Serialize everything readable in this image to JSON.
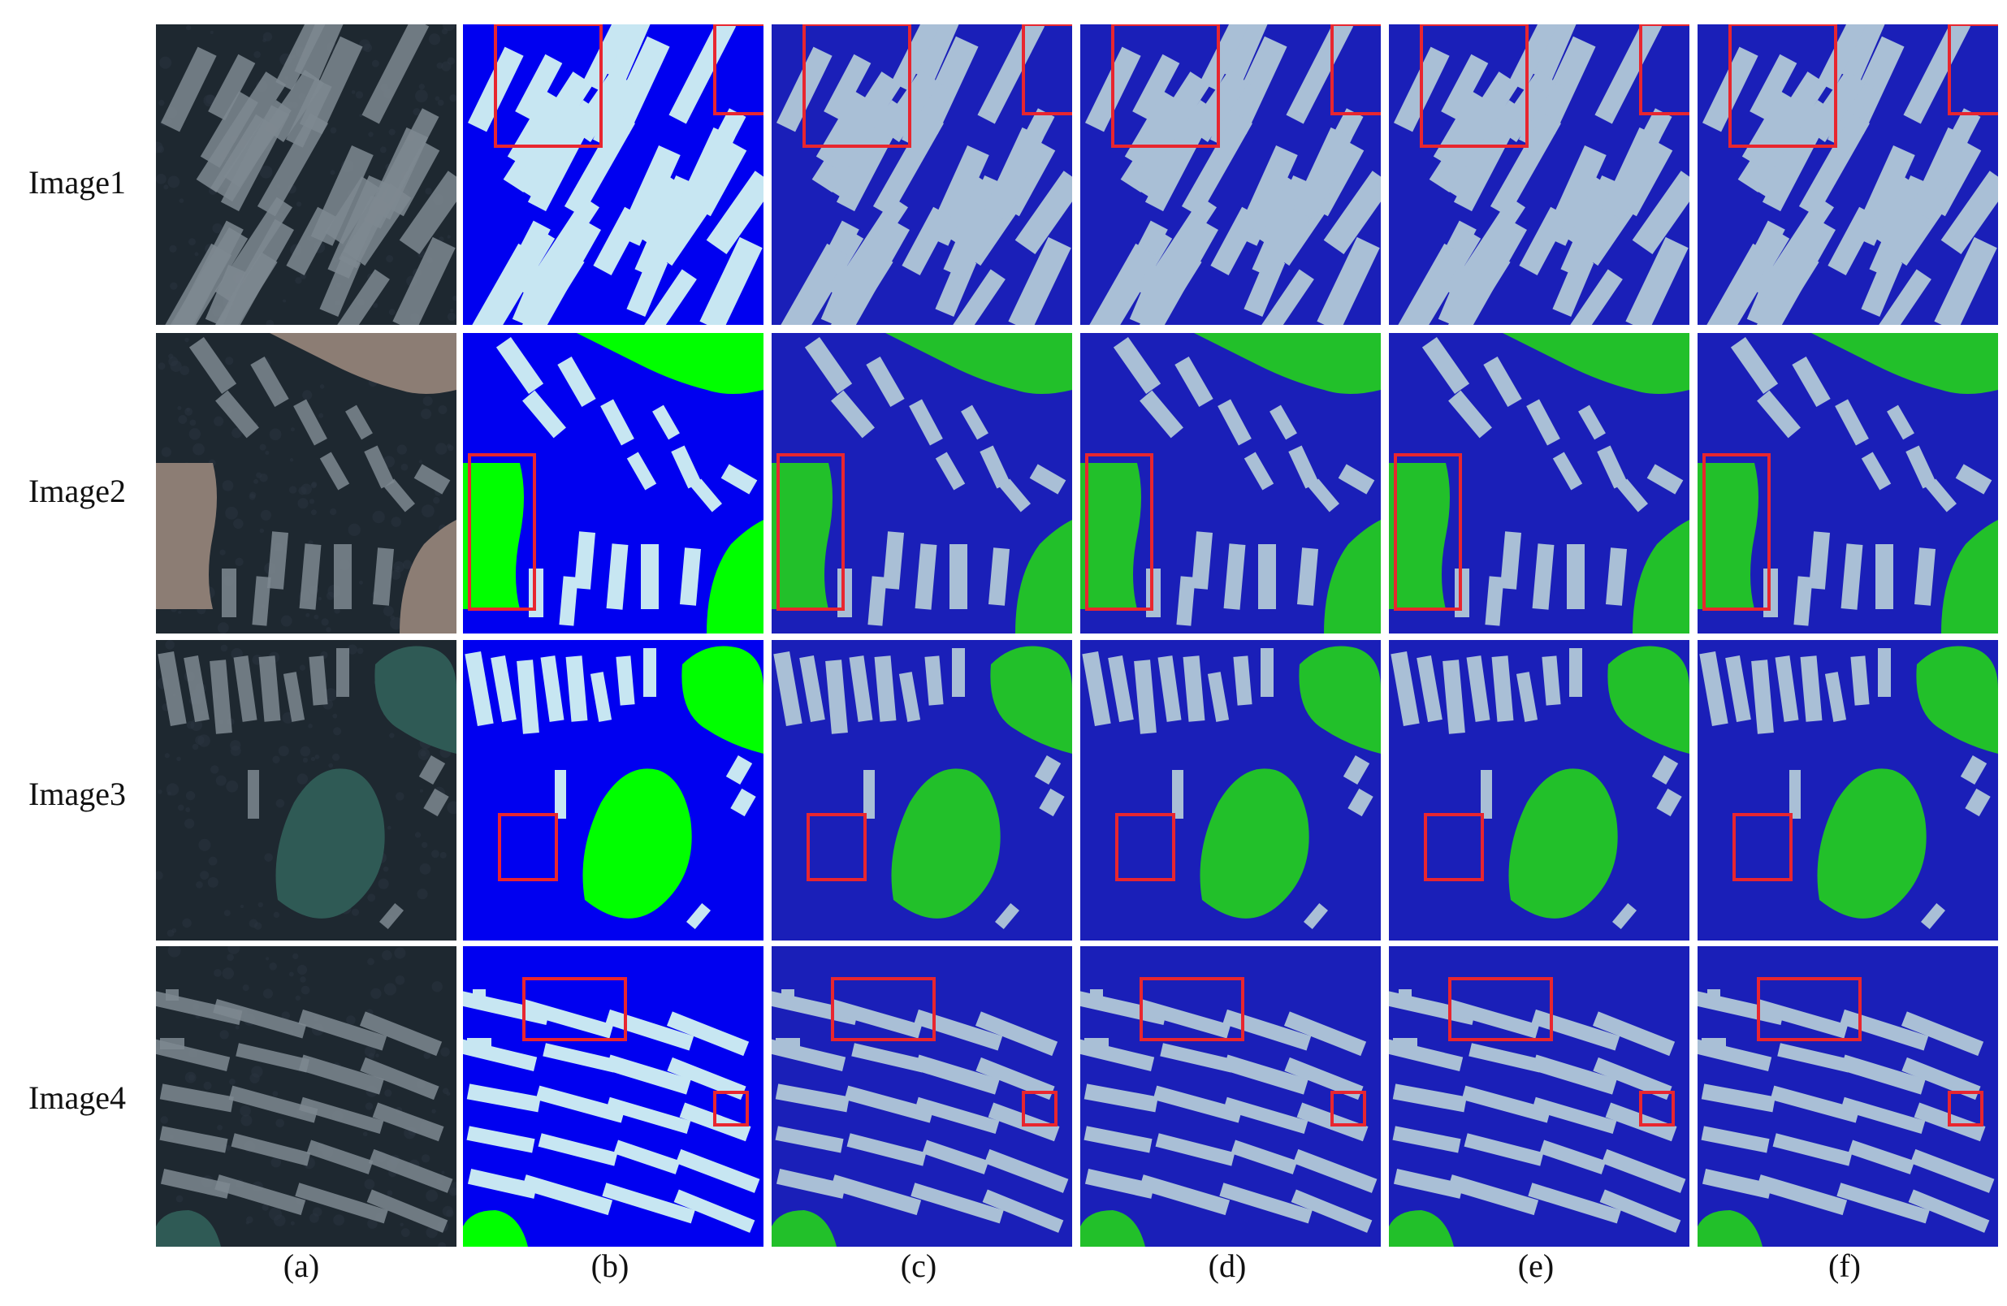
{
  "row_labels": [
    "Image1",
    "Image2",
    "Image3",
    "Image4"
  ],
  "column_labels": [
    "(a)",
    "(b)",
    "(c)",
    "(d)",
    "(e)",
    "(f)"
  ],
  "colors": {
    "water_ground_truth": "#0000f0",
    "water_prediction": "#1a1fb8",
    "raft_ground_truth": "#c7e6f2",
    "raft_prediction": "#a9bfd6",
    "land_ground_truth": "#00ff00",
    "land_prediction": "#22c02a",
    "highlight_box": "#e8262f",
    "photo_sea": "#1e2830",
    "photo_raft": "#7e8890"
  }
}
